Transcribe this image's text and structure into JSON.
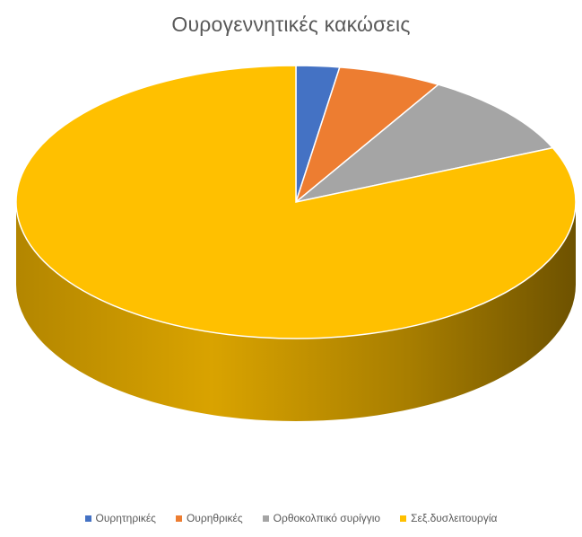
{
  "chart_data": {
    "type": "pie",
    "style": "3d",
    "title": "Ουρογεννητικές κακώσεις",
    "legend_position": "bottom",
    "slices": [
      {
        "name": "Ουρητηρικές",
        "value": 2.5,
        "color": "#4472C4"
      },
      {
        "name": "Ουρηθρικές",
        "value": 6,
        "color": "#ED7D31"
      },
      {
        "name": "Ορθοκολπικό συρίγγιο",
        "value": 10,
        "color": "#A5A5A5"
      },
      {
        "name": "Σεξ.δυσλειτουργία",
        "value": 81.5,
        "color": "#FFC000"
      }
    ]
  }
}
